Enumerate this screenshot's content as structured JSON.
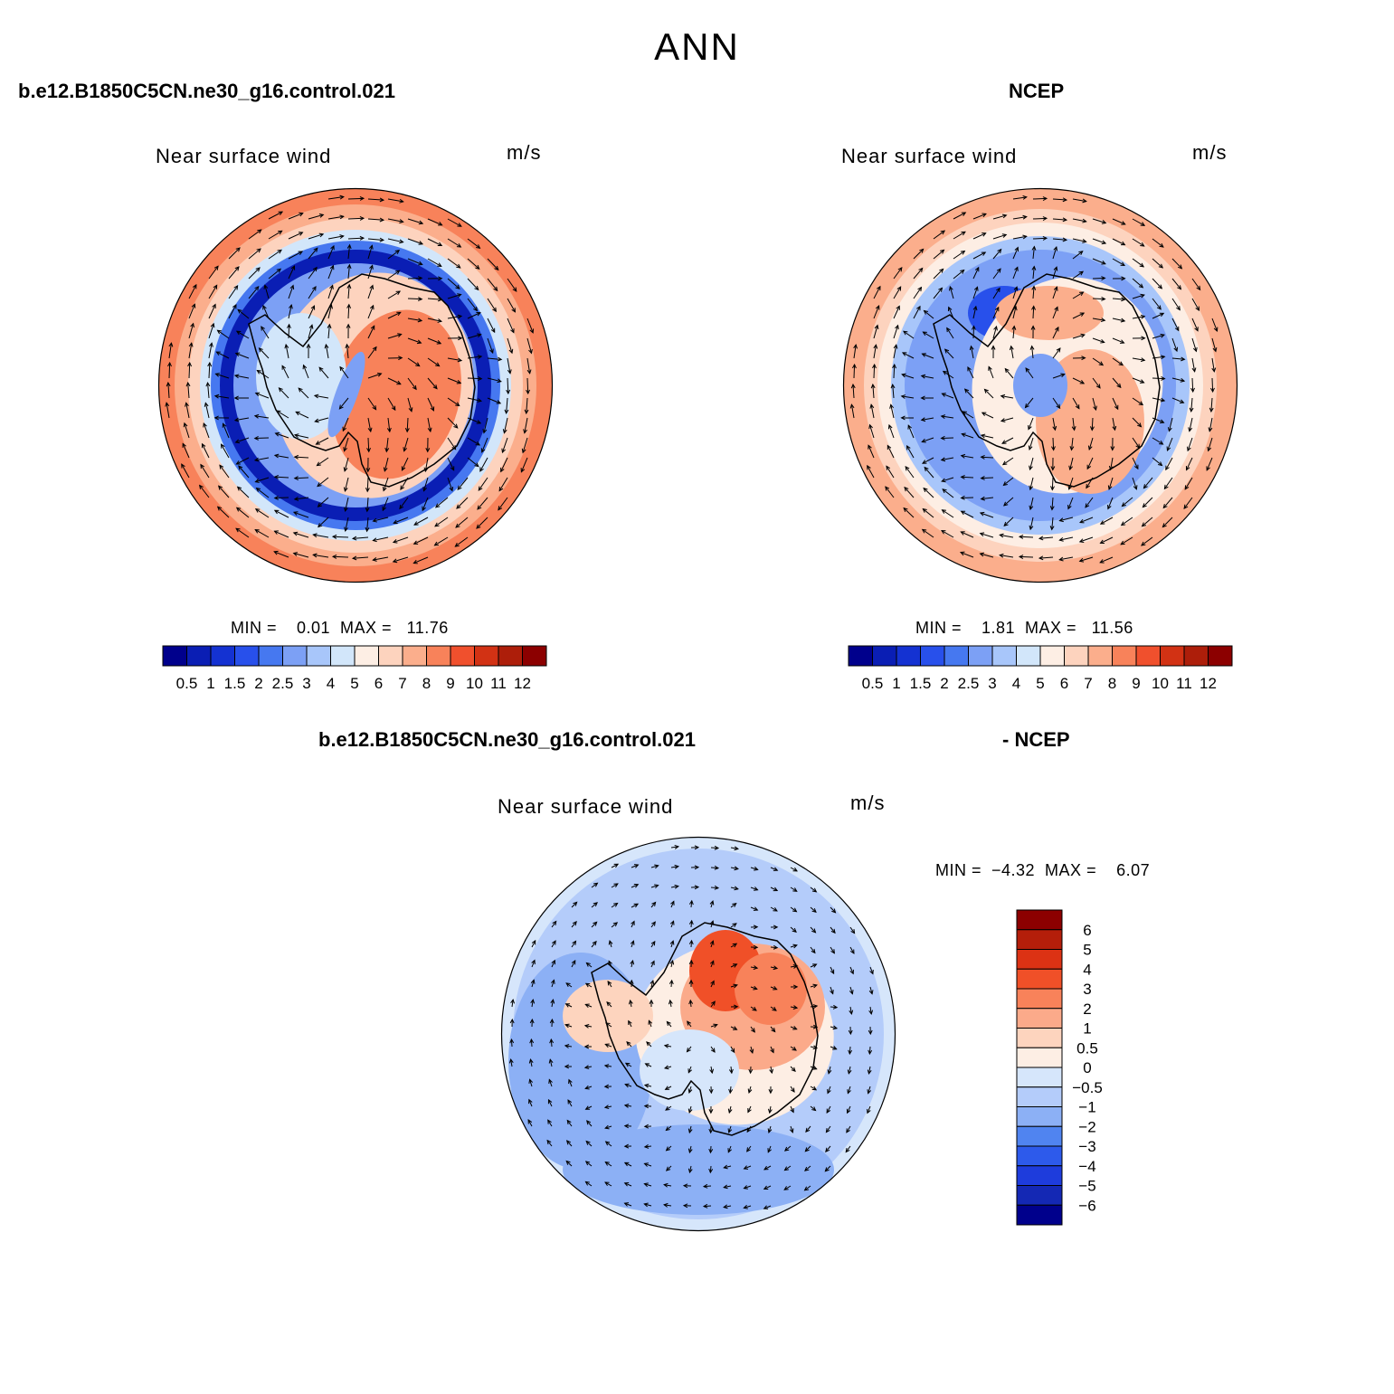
{
  "main_title": "ANN",
  "colors": {
    "abs_scale": [
      "#00008c",
      "#0a1eb4",
      "#1432d2",
      "#2850eb",
      "#4678f0",
      "#7ca0f5",
      "#a8c6fa",
      "#d2e6fa",
      "#fdeee4",
      "#fdd3be",
      "#fbae8c",
      "#f8825a",
      "#f0502d",
      "#d23214",
      "#ad1e0a",
      "#8c0000"
    ],
    "diff_scale": [
      "#8c0000",
      "#b41e0a",
      "#dc3214",
      "#f05028",
      "#f8825a",
      "#fbaa8a",
      "#fdd4be",
      "#fdeee4",
      "#d6e6fb",
      "#b4ccfa",
      "#8cb0f5",
      "#5084f0",
      "#2d5aeb",
      "#1e3cdc",
      "#1428b4",
      "#00008c"
    ]
  },
  "chart_data": [
    {
      "type": "heatmap",
      "projection": "polar-stereographic-south",
      "case_title": "b.e12.B1850C5CN.ne30_g16.control.021",
      "title": "Near surface wind",
      "units": "m/s",
      "min_max_text": "MIN =    0.01  MAX =   11.76",
      "min": 0.01,
      "max": 11.76,
      "colorbar_ticks": [
        "0.5",
        "1",
        "1.5",
        "2",
        "2.5",
        "3",
        "4",
        "5",
        "6",
        "7",
        "8",
        "9",
        "10",
        "11",
        "12"
      ]
    },
    {
      "type": "heatmap",
      "projection": "polar-stereographic-south",
      "case_title": "NCEP",
      "title": "Near surface wind",
      "units": "m/s",
      "min_max_text": "MIN =    1.81  MAX =   11.56",
      "min": 1.81,
      "max": 11.56,
      "colorbar_ticks": [
        "0.5",
        "1",
        "1.5",
        "2",
        "2.5",
        "3",
        "4",
        "5",
        "6",
        "7",
        "8",
        "9",
        "10",
        "11",
        "12"
      ]
    },
    {
      "type": "heatmap",
      "projection": "polar-stereographic-south",
      "case_title_left": "b.e12.B1850C5CN.ne30_g16.control.021",
      "case_title_right": "- NCEP",
      "title": "Near surface wind",
      "units": "m/s",
      "min_max_text": "MIN =  −4.32  MAX =    6.07",
      "min": -4.32,
      "max": 6.07,
      "colorbar_ticks": [
        "6",
        "5",
        "4",
        "3",
        "2",
        "1",
        "0.5",
        "0",
        "−0.5",
        "−1",
        "−2",
        "−3",
        "−4",
        "−5",
        "−6"
      ]
    }
  ]
}
